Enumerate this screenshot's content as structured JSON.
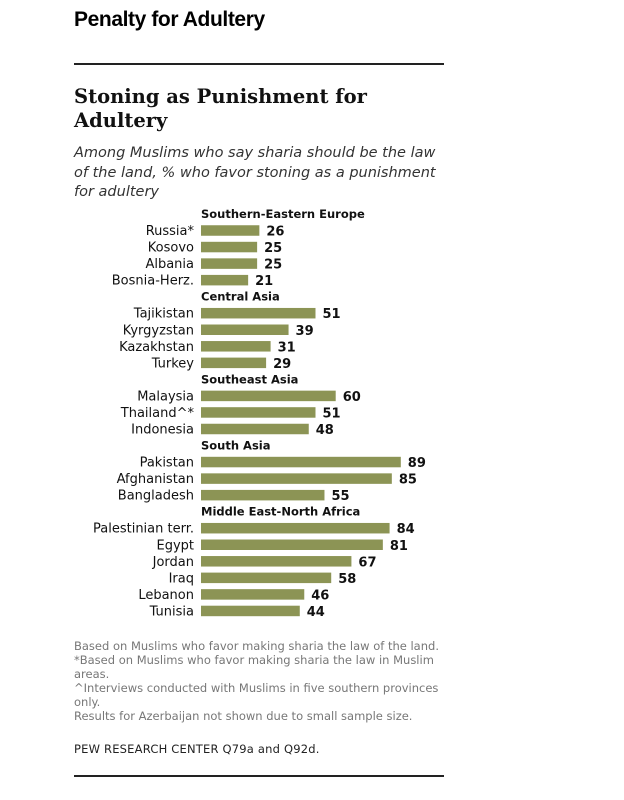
{
  "page_heading": "Penalty for Adultery",
  "chart_data": {
    "type": "bar",
    "title": "Stoning as Punishment for Adultery",
    "subtitle": "Among Muslims who say sharia should be the law of the land, % who favor stoning as a punishment for adultery",
    "bar_color": "#8c9455",
    "groups": [
      {
        "name": "Southern-Eastern Europe",
        "items": [
          {
            "label": "Russia*",
            "value": 26
          },
          {
            "label": "Kosovo",
            "value": 25
          },
          {
            "label": "Albania",
            "value": 25
          },
          {
            "label": "Bosnia-Herz.",
            "value": 21
          }
        ]
      },
      {
        "name": "Central Asia",
        "items": [
          {
            "label": "Tajikistan",
            "value": 51
          },
          {
            "label": "Kyrgyzstan",
            "value": 39
          },
          {
            "label": "Kazakhstan",
            "value": 31
          },
          {
            "label": "Turkey",
            "value": 29
          }
        ]
      },
      {
        "name": "Southeast Asia",
        "items": [
          {
            "label": "Malaysia",
            "value": 60
          },
          {
            "label": "Thailand^*",
            "value": 51
          },
          {
            "label": "Indonesia",
            "value": 48
          }
        ]
      },
      {
        "name": "South Asia",
        "items": [
          {
            "label": "Pakistan",
            "value": 89
          },
          {
            "label": "Afghanistan",
            "value": 85
          },
          {
            "label": "Bangladesh",
            "value": 55
          }
        ]
      },
      {
        "name": "Middle East-North Africa",
        "items": [
          {
            "label": "Palestinian terr.",
            "value": 84
          },
          {
            "label": "Egypt",
            "value": 81
          },
          {
            "label": "Jordan",
            "value": 67
          },
          {
            "label": "Iraq",
            "value": 58
          },
          {
            "label": "Lebanon",
            "value": 46
          },
          {
            "label": "Tunisia",
            "value": 44
          }
        ]
      }
    ]
  },
  "notes": [
    "Based on Muslims who favor making sharia the law of the land.",
    "*Based on Muslims who favor making sharia the law in Muslim areas.",
    "^Interviews conducted with Muslims in five southern provinces only.",
    "Results for Azerbaijan not shown due to small sample size."
  ],
  "source": "PEW RESEARCH CENTER Q79a and Q92d."
}
